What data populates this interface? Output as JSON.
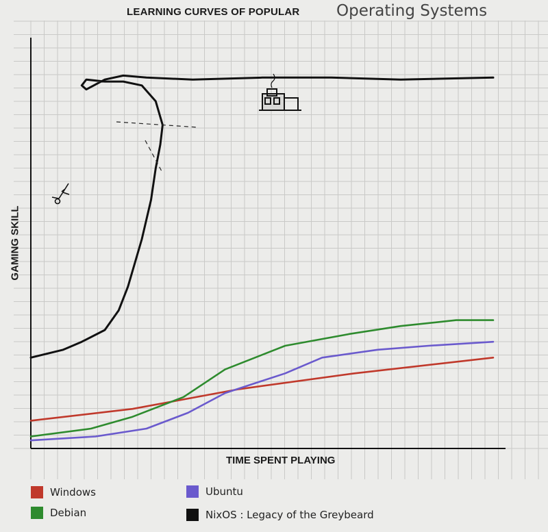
{
  "chart_data": {
    "type": "line",
    "title_part1": "LEARNING CURVES OF POPULAR",
    "title_part2": "Operating Systems",
    "xlabel": "TIME SPENT PLAYING",
    "ylabel": "GAMING SKILL",
    "xlim": [
      0,
      100
    ],
    "ylim": [
      0,
      100
    ],
    "grid": true,
    "legend_position": "bottom",
    "series": [
      {
        "name": "Windows",
        "color": "#c0392b",
        "x": [
          0,
          22,
          45,
          70,
          100
        ],
        "y": [
          6,
          9,
          14,
          18,
          22
        ]
      },
      {
        "name": "Ubuntu",
        "color": "#6a5acd",
        "x": [
          0,
          14,
          25,
          34,
          42,
          55,
          63,
          75,
          86,
          100
        ],
        "y": [
          1,
          2,
          4,
          8,
          13,
          18,
          22,
          24,
          25,
          26
        ]
      },
      {
        "name": "Debian",
        "color": "#2e8b2e",
        "x": [
          0,
          13,
          22,
          33,
          42,
          55,
          69,
          80,
          92,
          100
        ],
        "y": [
          2,
          4,
          7,
          12,
          19,
          25,
          28,
          30,
          31.5,
          31.5
        ]
      },
      {
        "name": "NixOS : Legacy of the Greybeard",
        "color": "#111111",
        "x": [
          0,
          7,
          11,
          16,
          19,
          21,
          24,
          26,
          27,
          28,
          28.5,
          27,
          24,
          20,
          16,
          12,
          11,
          12,
          16,
          20,
          25,
          35,
          50,
          65,
          80,
          100
        ],
        "y": [
          22,
          24,
          26,
          29,
          34,
          40,
          52,
          62,
          70,
          76,
          81,
          87,
          91,
          92,
          92,
          92.5,
          91,
          90,
          92.5,
          93.5,
          93,
          92.5,
          93,
          93,
          92.5,
          93
        ]
      }
    ]
  }
}
